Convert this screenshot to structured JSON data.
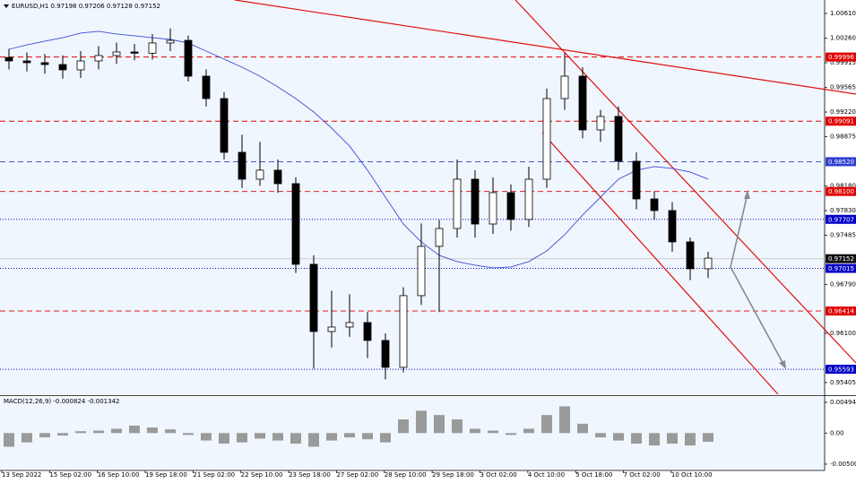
{
  "chart_data": {
    "type": "candlestick",
    "header": "EURUSD,H1  0.97198 0.97206 0.97128 0.97152",
    "indicator_label": "MACD(12,26,9) -0.000824 -0.001342",
    "ylim": [
      0.9524,
      1.008
    ],
    "yticks": [
      {
        "value": 1.0061,
        "label": "1.00610"
      },
      {
        "value": 1.0026,
        "label": "1.00260"
      },
      {
        "value": 0.99915,
        "label": "0.99915"
      },
      {
        "value": 0.99565,
        "label": "0.99565"
      },
      {
        "value": 0.9922,
        "label": "0.99220"
      },
      {
        "value": 0.98875,
        "label": "0.98875"
      },
      {
        "value": 0.9818,
        "label": "0.98180"
      },
      {
        "value": 0.9783,
        "label": "0.97830"
      },
      {
        "value": 0.97485,
        "label": "0.97485"
      },
      {
        "value": 0.9679,
        "label": "0.96790"
      },
      {
        "value": 0.961,
        "label": "0.96100"
      },
      {
        "value": 0.95405,
        "label": "0.95405"
      }
    ],
    "x_labels": [
      "13 Sep 2022",
      "15 Sep 02:00",
      "16 Sep 10:00",
      "19 Sep 18:00",
      "21 Sep 02:00",
      "22 Sep 10:00",
      "23 Sep 18:00",
      "27 Sep 02:00",
      "28 Sep 10:00",
      "29 Sep 18:00",
      "3 Oct 02:00",
      "4 Oct 10:00",
      "5 Oct 18:00",
      "7 Oct 02:00",
      "10 Oct 10:00"
    ],
    "levels": [
      {
        "value": 0.99996,
        "label": "0.99996",
        "color": "#e00000",
        "style": "dashed"
      },
      {
        "value": 0.99091,
        "label": "0.99091",
        "color": "#e00000",
        "style": "dashed"
      },
      {
        "value": 0.9852,
        "label": "0.98520",
        "color": "#2d3fd0",
        "style": "dashed"
      },
      {
        "value": 0.981,
        "label": "0.98100",
        "color": "#e00000",
        "style": "dashed"
      },
      {
        "value": 0.97707,
        "label": "0.97707",
        "color": "#0000c8",
        "style": "dotted"
      },
      {
        "value": 0.97152,
        "label": "0.97152",
        "color": "#111111",
        "style": "solid"
      },
      {
        "value": 0.97015,
        "label": "0.97015",
        "color": "#0000c8",
        "style": "dotted"
      },
      {
        "value": 0.96414,
        "label": "0.96414",
        "color": "#e00000",
        "style": "dashed"
      },
      {
        "value": 0.95593,
        "label": "0.95593",
        "color": "#0000c8",
        "style": "dotted"
      }
    ],
    "ohlc": [
      [
        0.9999,
        1.0011,
        0.9982,
        0.99941
      ],
      [
        0.99941,
        1.0006,
        0.9979,
        0.99916
      ],
      [
        0.99916,
        1.0004,
        0.9976,
        0.9989
      ],
      [
        0.9989,
        1.0002,
        0.9969,
        0.99815
      ],
      [
        0.99815,
        1.0008,
        0.997,
        0.99941
      ],
      [
        0.99941,
        1.0015,
        0.9982,
        1.00017
      ],
      [
        1.00017,
        1.002,
        0.999,
        1.00067
      ],
      [
        1.00067,
        1.0018,
        0.9995,
        1.0005
      ],
      [
        1.0005,
        1.0032,
        0.9996,
        1.00194
      ],
      [
        1.00194,
        1.004,
        1.0008,
        1.00231
      ],
      [
        1.00231,
        1.003,
        0.9965,
        0.99726
      ],
      [
        0.99726,
        0.9982,
        0.993,
        0.9941
      ],
      [
        0.9941,
        0.995,
        0.9855,
        0.98652
      ],
      [
        0.98652,
        0.989,
        0.9815,
        0.98273
      ],
      [
        0.98273,
        0.988,
        0.9818,
        0.984
      ],
      [
        0.984,
        0.9855,
        0.9808,
        0.9821
      ],
      [
        0.9821,
        0.983,
        0.9695,
        0.97073
      ],
      [
        0.97073,
        0.972,
        0.956,
        0.96125
      ],
      [
        0.96125,
        0.967,
        0.959,
        0.96188
      ],
      [
        0.96188,
        0.9665,
        0.9605,
        0.96252
      ],
      [
        0.96252,
        0.964,
        0.9575,
        0.95999
      ],
      [
        0.95999,
        0.961,
        0.9545,
        0.9562
      ],
      [
        0.9562,
        0.9675,
        0.9555,
        0.96631
      ],
      [
        0.96631,
        0.9765,
        0.965,
        0.97326
      ],
      [
        0.97326,
        0.977,
        0.964,
        0.97578
      ],
      [
        0.97578,
        0.9855,
        0.9745,
        0.98273
      ],
      [
        0.98273,
        0.984,
        0.9745,
        0.97641
      ],
      [
        0.97641,
        0.983,
        0.975,
        0.98084
      ],
      [
        0.98084,
        0.982,
        0.9755,
        0.97705
      ],
      [
        0.97705,
        0.9845,
        0.976,
        0.98273
      ],
      [
        0.98273,
        0.9955,
        0.9815,
        0.9941
      ],
      [
        0.9941,
        1.0005,
        0.9925,
        0.99726
      ],
      [
        0.99726,
        0.9985,
        0.9885,
        0.98968
      ],
      [
        0.98968,
        0.9925,
        0.988,
        0.99158
      ],
      [
        0.99158,
        0.993,
        0.984,
        0.98526
      ],
      [
        0.98526,
        0.9865,
        0.9785,
        0.97995
      ],
      [
        0.97995,
        0.981,
        0.977,
        0.97831
      ],
      [
        0.97831,
        0.9795,
        0.9725,
        0.97389
      ],
      [
        0.97389,
        0.9745,
        0.9685,
        0.9701
      ],
      [
        0.9701,
        0.9725,
        0.9688,
        0.9716
      ]
    ],
    "moving_average": {
      "color": "#3a4fd6",
      "values": [
        1.00105,
        1.00168,
        1.00219,
        1.00269,
        1.00333,
        1.00358,
        1.0032,
        1.00295,
        1.00269,
        1.00244,
        1.00194,
        1.0008,
        0.99966,
        0.99852,
        0.99726,
        0.99574,
        0.9941,
        0.99221,
        0.98993,
        0.98741,
        0.984,
        0.9802,
        0.97641,
        0.97389,
        0.97199,
        0.97111,
        0.9706,
        0.97022,
        0.97035,
        0.97111,
        0.97262,
        0.9749,
        0.97768,
        0.9802,
        0.98273,
        0.984,
        0.9845,
        0.98425,
        0.98374,
        0.98273
      ]
    },
    "macd": {
      "color": "#9a9a9a",
      "ylim": [
        -0.00602,
        0.00581
      ],
      "yticks": [
        0.004943,
        {
          "value": 0,
          "label": "0.00"
        },
        -0.005003
      ],
      "values": [
        -0.0022,
        -0.0015,
        -0.0007,
        -0.0004,
        0.0003,
        0.0004,
        0.0007,
        0.0012,
        0.0009,
        0.0006,
        -0.0003,
        -0.0012,
        -0.0017,
        -0.0015,
        -0.0009,
        -0.0012,
        -0.0017,
        -0.0022,
        -0.0012,
        -0.0007,
        -0.001,
        -0.0015,
        0.0022,
        0.0036,
        0.0029,
        0.0022,
        0.0007,
        0.0004,
        -0.0003,
        0.0007,
        0.0029,
        0.0043,
        0.0015,
        -0.0007,
        -0.0012,
        -0.0017,
        -0.002,
        -0.0017,
        -0.002,
        -0.0014
      ]
    }
  }
}
